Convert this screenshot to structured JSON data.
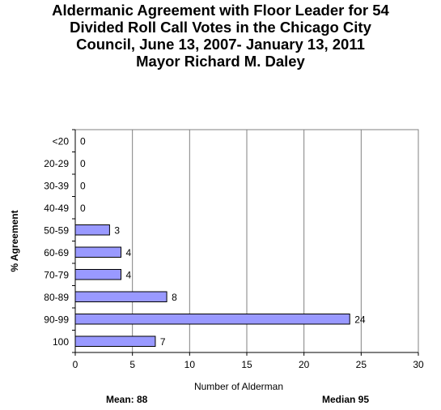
{
  "title_lines": [
    "Aldermanic Agreement with Floor Leader for 54",
    "Divided Roll Call Votes in the Chicago City",
    "Council, June 13, 2007- January 13, 2011",
    "Mayor Richard M. Daley"
  ],
  "stats": {
    "mean": "Mean: 88",
    "median": "Median 95"
  },
  "chart_data": {
    "type": "bar",
    "orientation": "horizontal",
    "categories": [
      "<20",
      "20-29",
      "30-39",
      "40-49",
      "50-59",
      "60-69",
      "70-79",
      "80-89",
      "90-99",
      "100"
    ],
    "values": [
      0,
      0,
      0,
      0,
      3,
      4,
      4,
      8,
      24,
      7
    ],
    "data_labels": [
      "0",
      "0",
      "0",
      "0",
      "3",
      "4",
      "4",
      "8",
      "24",
      "7"
    ],
    "xlabel": "Number of Alderman",
    "ylabel": "% Agreement",
    "xlim": [
      0,
      30
    ],
    "xticks": [
      0,
      5,
      10,
      15,
      20,
      25,
      30
    ],
    "grid": "vertical",
    "legend": "none",
    "bar_color": "#9999ff",
    "bar_edge_color": "#000000"
  }
}
